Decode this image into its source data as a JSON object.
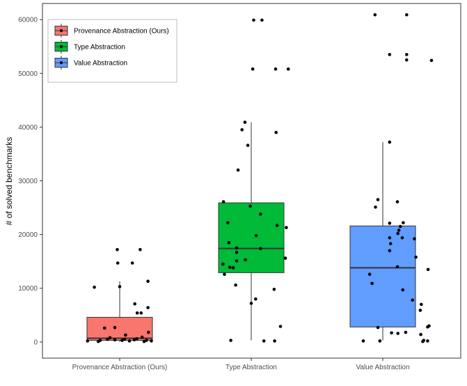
{
  "chart_data": {
    "type": "boxplot",
    "title": "",
    "xlabel": "",
    "ylabel": "# of solved benchmarks",
    "ylim": [
      -3000,
      63000
    ],
    "yticks": [
      0,
      10000,
      20000,
      30000,
      40000,
      50000,
      60000
    ],
    "categories": [
      "Provenance Abstraction (Ours)",
      "Type Abstraction",
      "Value Abstraction"
    ],
    "legend": {
      "position": "top-left",
      "entries": [
        "Provenance Abstraction (Ours)",
        "Type Abstraction",
        "Value Abstraction"
      ]
    },
    "series": [
      {
        "name": "Provenance Abstraction (Ours)",
        "color": "#F8766D",
        "box": {
          "whisker_low": 0,
          "q1": 300,
          "median": 700,
          "q3": 4600,
          "whisker_high": 11300
        },
        "points": [
          {
            "j": 0.42,
            "y": 17200
          },
          {
            "j": -0.05,
            "y": 17200
          },
          {
            "j": -0.04,
            "y": 14700
          },
          {
            "j": 0.26,
            "y": 14700
          },
          {
            "j": 0.58,
            "y": 11300
          },
          {
            "j": -0.52,
            "y": 10200
          },
          {
            "j": 0.0,
            "y": 10300
          },
          {
            "j": 0.31,
            "y": 7100
          },
          {
            "j": 0.58,
            "y": 6400
          },
          {
            "j": 0.36,
            "y": 5400
          },
          {
            "j": 0.44,
            "y": 5400
          },
          {
            "j": -0.31,
            "y": 2600
          },
          {
            "j": -0.1,
            "y": 2700
          },
          {
            "j": 0.59,
            "y": 1800
          },
          {
            "j": 0.12,
            "y": 1300
          },
          {
            "j": -0.2,
            "y": 800
          },
          {
            "j": 0.35,
            "y": 600
          },
          {
            "j": 0.46,
            "y": 900
          },
          {
            "j": -0.66,
            "y": 200
          },
          {
            "j": -0.44,
            "y": 100
          },
          {
            "j": -0.4,
            "y": 300
          },
          {
            "j": -0.1,
            "y": 400
          },
          {
            "j": 0.05,
            "y": 300
          },
          {
            "j": 0.2,
            "y": 200
          },
          {
            "j": 0.5,
            "y": 100
          },
          {
            "j": 0.55,
            "y": 300
          },
          {
            "j": 0.65,
            "y": 200
          },
          {
            "j": -0.25,
            "y": 500
          },
          {
            "j": 0.1,
            "y": 500
          },
          {
            "j": 0.3,
            "y": 400
          }
        ]
      },
      {
        "name": "Type Abstraction",
        "color": "#00BA38",
        "box": {
          "whisker_low": 300,
          "q1": 12900,
          "median": 17400,
          "q3": 25900,
          "whisker_high": 40900
        },
        "points": [
          {
            "j": 0.05,
            "y": 59900
          },
          {
            "j": 0.22,
            "y": 59900
          },
          {
            "j": 0.03,
            "y": 50800
          },
          {
            "j": 0.5,
            "y": 50800
          },
          {
            "j": 0.76,
            "y": 50800
          },
          {
            "j": -0.13,
            "y": 40900
          },
          {
            "j": -0.19,
            "y": 39500
          },
          {
            "j": 0.51,
            "y": 39000
          },
          {
            "j": -0.07,
            "y": 36600
          },
          {
            "j": -0.27,
            "y": 32000
          },
          {
            "j": -0.57,
            "y": 26100
          },
          {
            "j": -0.02,
            "y": 25300
          },
          {
            "j": 0.19,
            "y": 23800
          },
          {
            "j": -0.48,
            "y": 22200
          },
          {
            "j": 0.53,
            "y": 21700
          },
          {
            "j": 0.72,
            "y": 21300
          },
          {
            "j": 0.1,
            "y": 19800
          },
          {
            "j": -0.46,
            "y": 18500
          },
          {
            "j": -0.3,
            "y": 17500
          },
          {
            "j": -0.3,
            "y": 16700
          },
          {
            "j": 0.19,
            "y": 17400
          },
          {
            "j": 0.7,
            "y": 15600
          },
          {
            "j": -0.3,
            "y": 15100
          },
          {
            "j": -0.12,
            "y": 15300
          },
          {
            "j": -0.58,
            "y": 14500
          },
          {
            "j": -0.44,
            "y": 13900
          },
          {
            "j": -0.37,
            "y": 13800
          },
          {
            "j": -0.55,
            "y": 12600
          },
          {
            "j": -0.32,
            "y": 10600
          },
          {
            "j": 0.47,
            "y": 9800
          },
          {
            "j": 0.09,
            "y": 8000
          },
          {
            "j": 0.0,
            "y": 7200
          },
          {
            "j": 0.6,
            "y": 2900
          },
          {
            "j": -0.42,
            "y": 300
          },
          {
            "j": 0.26,
            "y": 200
          },
          {
            "j": 0.48,
            "y": 200
          }
        ]
      },
      {
        "name": "Value Abstraction",
        "color": "#619CFF",
        "box": {
          "whisker_low": 300,
          "q1": 2800,
          "median": 13800,
          "q3": 21600,
          "whisker_high": 37200
        },
        "points": [
          {
            "j": -0.16,
            "y": 60900
          },
          {
            "j": 0.49,
            "y": 60900
          },
          {
            "j": 0.14,
            "y": 53500
          },
          {
            "j": 0.49,
            "y": 53500
          },
          {
            "j": 0.49,
            "y": 52500
          },
          {
            "j": 1.0,
            "y": 52400
          },
          {
            "j": 0.14,
            "y": 37200
          },
          {
            "j": -0.1,
            "y": 26500
          },
          {
            "j": 0.3,
            "y": 26100
          },
          {
            "j": -0.15,
            "y": 25100
          },
          {
            "j": 0.42,
            "y": 22200
          },
          {
            "j": 0.14,
            "y": 22100
          },
          {
            "j": 0.36,
            "y": 21500
          },
          {
            "j": 0.33,
            "y": 20800
          },
          {
            "j": 0.31,
            "y": 20200
          },
          {
            "j": 0.4,
            "y": 19400
          },
          {
            "j": 0.65,
            "y": 19200
          },
          {
            "j": 0.14,
            "y": 19400
          },
          {
            "j": 0.16,
            "y": 18300
          },
          {
            "j": 0.14,
            "y": 17000
          },
          {
            "j": 0.68,
            "y": 15800
          },
          {
            "j": 0.3,
            "y": 14000
          },
          {
            "j": 0.93,
            "y": 13500
          },
          {
            "j": -0.27,
            "y": 12600
          },
          {
            "j": -0.22,
            "y": 10900
          },
          {
            "j": 0.41,
            "y": 9700
          },
          {
            "j": 0.61,
            "y": 7800
          },
          {
            "j": 0.79,
            "y": 7000
          },
          {
            "j": 0.77,
            "y": 5900
          },
          {
            "j": -0.1,
            "y": 2700
          },
          {
            "j": 0.95,
            "y": 3000
          },
          {
            "j": 0.92,
            "y": 2800
          },
          {
            "j": 0.47,
            "y": 1800
          },
          {
            "j": 0.18,
            "y": 1700
          },
          {
            "j": 0.31,
            "y": 1600
          },
          {
            "j": 0.78,
            "y": 1400
          },
          {
            "j": 0.84,
            "y": 300
          },
          {
            "j": -0.4,
            "y": 200
          },
          {
            "j": -0.06,
            "y": 200
          },
          {
            "j": 0.82,
            "y": 100
          },
          {
            "j": 0.92,
            "y": 200
          }
        ]
      }
    ]
  }
}
